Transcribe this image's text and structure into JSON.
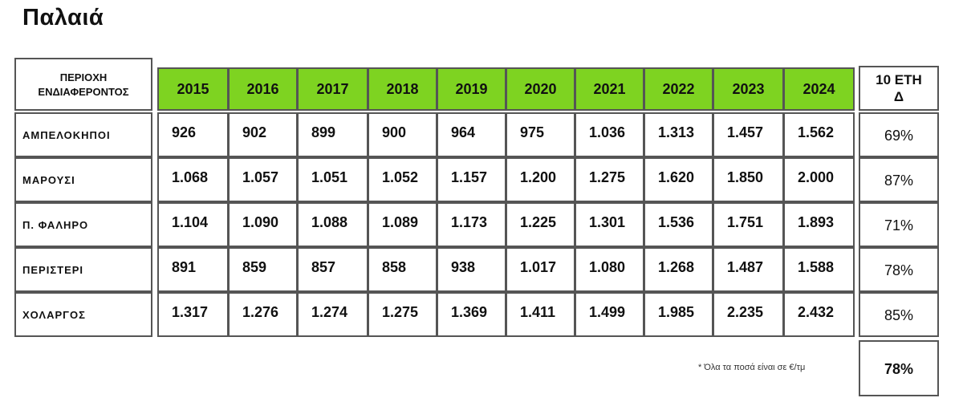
{
  "title": "Παλαιά",
  "table": {
    "area_header": "ΠΕΡΙΟΧΗ\nΕΝΔΙΑΦΕΡΟΝΤΟΣ",
    "change_header": "10 ΕΤΗ\nΔ",
    "years": [
      "2015",
      "2016",
      "2017",
      "2018",
      "2019",
      "2020",
      "2021",
      "2022",
      "2023",
      "2024"
    ],
    "header_color": "#7ed321",
    "rows": [
      {
        "area": "ΑΜΠΕΛΟΚΗΠΟΙ",
        "values": [
          "926",
          "902",
          "899",
          "900",
          "964",
          "975",
          "1.036",
          "1.313",
          "1.457",
          "1.562"
        ],
        "change": "69%"
      },
      {
        "area": "ΜΑΡΟΥΣΙ",
        "values": [
          "1.068",
          "1.057",
          "1.051",
          "1.052",
          "1.157",
          "1.200",
          "1.275",
          "1.620",
          "1.850",
          "2.000"
        ],
        "change": "87%"
      },
      {
        "area": "Π. ΦΑΛΗΡΟ",
        "values": [
          "1.104",
          "1.090",
          "1.088",
          "1.089",
          "1.173",
          "1.225",
          "1.301",
          "1.536",
          "1.751",
          "1.893"
        ],
        "change": "71%"
      },
      {
        "area": "ΠΕΡΙΣΤΕΡΙ",
        "values": [
          "891",
          "859",
          "857",
          "858",
          "938",
          "1.017",
          "1.080",
          "1.268",
          "1.487",
          "1.588"
        ],
        "change": "78%"
      },
      {
        "area": "ΧΟΛΑΡΓΟΣ",
        "values": [
          "1.317",
          "1.276",
          "1.274",
          "1.275",
          "1.369",
          "1.411",
          "1.499",
          "1.985",
          "2.235",
          "2.432"
        ],
        "change": "85%"
      }
    ],
    "average_change": "78%",
    "footnote": "* Όλα τα ποσά είναι σε €/τμ"
  }
}
